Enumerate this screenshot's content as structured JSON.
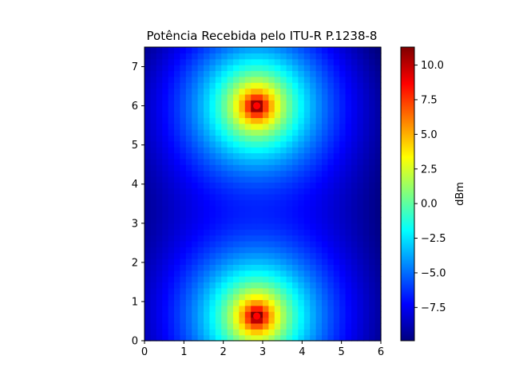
{
  "chart_data": {
    "type": "heatmap",
    "title": "Potência Recebida pelo ITU-R P.1238-8",
    "xlabel": "",
    "ylabel": "",
    "xlim": [
      0,
      6
    ],
    "ylim": [
      0,
      7.5
    ],
    "x_ticks": [
      0,
      1,
      2,
      3,
      4,
      5,
      6
    ],
    "x_tick_labels": [
      "0",
      "1",
      "2",
      "3",
      "4",
      "5",
      "6"
    ],
    "y_ticks": [
      0,
      1,
      2,
      3,
      4,
      5,
      6,
      7
    ],
    "y_tick_labels": [
      "0",
      "1",
      "2",
      "3",
      "4",
      "5",
      "6",
      "7"
    ],
    "grid": {
      "nx": 40,
      "ny": 50
    },
    "colormap": "jet",
    "color_range": [
      -9.9,
      11.3
    ],
    "field": {
      "min_value": -9.9,
      "max_value": 11.3,
      "min_center": [
        2.85,
        3.3
      ],
      "access_points": [
        [
          2.85,
          6.0
        ],
        [
          2.85,
          0.63
        ]
      ]
    },
    "points": [
      {
        "x": 2.85,
        "y": 6.0
      },
      {
        "x": 2.85,
        "y": 0.63
      }
    ],
    "point_color": "#ff0000",
    "colorbar": {
      "label": "dBm",
      "ticks": [
        10.0,
        7.5,
        5.0,
        2.5,
        0.0,
        -2.5,
        -5.0,
        -7.5
      ],
      "tick_labels": [
        "10.0",
        "7.5",
        "5.0",
        "2.5",
        "0.0",
        "−2.5",
        "−5.0",
        "−7.5"
      ]
    }
  }
}
